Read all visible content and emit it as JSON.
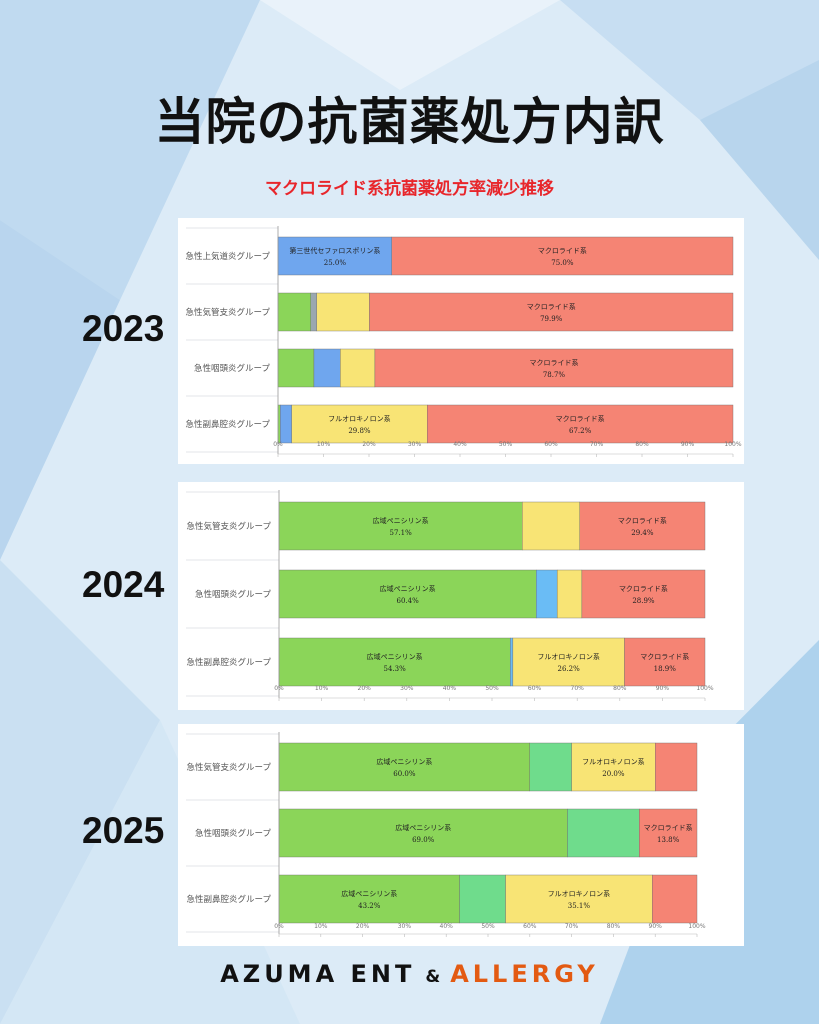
{
  "header": {
    "title": "当院の抗菌薬処方内訳",
    "subtitle": "マクロライド系抗菌薬処方率減少推移"
  },
  "colors": {
    "kouiki": "#8bd559",
    "sedem": "#6abcf5",
    "third_ceph": "#6fa6ee",
    "fluoro": "#f8e475",
    "macro": "#f58474",
    "other_grey": "#9aa7b0",
    "green2": "#6fdc8c"
  },
  "footer": {
    "brand": "AZUMA ENT",
    "amp": "&",
    "accent": "ALLERGY"
  },
  "chart_data": [
    {
      "type": "bar",
      "orientation": "horizontal",
      "stacked": true,
      "year_label": "2023",
      "xlim": [
        0,
        100
      ],
      "xticks": [
        "0%",
        "10%",
        "20%",
        "30%",
        "40%",
        "50%",
        "60%",
        "70%",
        "80%",
        "90%",
        "100%"
      ],
      "categories": [
        "急性上気道炎グループ",
        "急性気管支炎グループ",
        "急性咽頭炎グループ",
        "急性副鼻腔炎グループ"
      ],
      "series": [
        {
          "color": "#8bd559",
          "values": [
            0,
            7.2,
            7.9,
            0.5
          ]
        },
        {
          "color": "#9aa7b0",
          "values": [
            0,
            1.3,
            0,
            0
          ]
        },
        {
          "name": "第三世代セファロスポリン系",
          "color": "#6fa6ee",
          "values": [
            25.0,
            0,
            5.8,
            2.5
          ]
        },
        {
          "name": "フルオロキノロン系",
          "color": "#f8e475",
          "values": [
            0,
            11.6,
            7.6,
            29.8
          ]
        },
        {
          "name": "マクロライド系",
          "color": "#f58474",
          "values": [
            75.0,
            79.9,
            78.7,
            67.2
          ]
        }
      ],
      "labels": [
        [
          {
            "series": 2,
            "text": "第三世代セファロスポリン系",
            "value": "25.0%"
          },
          {
            "series": 4,
            "text": "マクロライド系",
            "value": "75.0%"
          }
        ],
        [
          {
            "series": 4,
            "text": "マクロライド系",
            "value": "79.9%"
          }
        ],
        [
          {
            "series": 4,
            "text": "マクロライド系",
            "value": "78.7%"
          }
        ],
        [
          {
            "series": 3,
            "text": "フルオロキノロン系",
            "value": "29.8%"
          },
          {
            "series": 4,
            "text": "マクロライド系",
            "value": "67.2%"
          }
        ]
      ]
    },
    {
      "type": "bar",
      "orientation": "horizontal",
      "stacked": true,
      "year_label": "2024",
      "xlim": [
        0,
        100
      ],
      "xticks": [
        "0%",
        "10%",
        "20%",
        "30%",
        "40%",
        "50%",
        "60%",
        "70%",
        "80%",
        "90%",
        "100%"
      ],
      "categories": [
        "急性気管支炎グループ",
        "急性咽頭炎グループ",
        "急性副鼻腔炎グループ"
      ],
      "series": [
        {
          "name": "広域ペニシリン系",
          "color": "#8bd559",
          "values": [
            57.1,
            60.4,
            54.3
          ]
        },
        {
          "color": "#6abcf5",
          "values": [
            0,
            4.9,
            0.6
          ]
        },
        {
          "name": "フルオロキノロン系",
          "color": "#f8e475",
          "values": [
            13.5,
            5.8,
            26.2
          ]
        },
        {
          "name": "マクロライド系",
          "color": "#f58474",
          "values": [
            29.4,
            28.9,
            18.9
          ]
        }
      ],
      "labels": [
        [
          {
            "series": 0,
            "text": "広域ペニシリン系",
            "value": "57.1%"
          },
          {
            "series": 3,
            "text": "マクロライド系",
            "value": "29.4%"
          }
        ],
        [
          {
            "series": 0,
            "text": "広域ペニシリン系",
            "value": "60.4%"
          },
          {
            "series": 3,
            "text": "マクロライド系",
            "value": "28.9%"
          }
        ],
        [
          {
            "series": 0,
            "text": "広域ペニシリン系",
            "value": "54.3%"
          },
          {
            "series": 2,
            "text": "フルオロキノロン系",
            "value": "26.2%"
          },
          {
            "series": 3,
            "text": "マクロライド系",
            "value": "18.9%"
          }
        ]
      ]
    },
    {
      "type": "bar",
      "orientation": "horizontal",
      "stacked": true,
      "year_label": "2025",
      "xlim": [
        0,
        100
      ],
      "xticks": [
        "0%",
        "10%",
        "20%",
        "30%",
        "40%",
        "50%",
        "60%",
        "70%",
        "80%",
        "90%",
        "100%"
      ],
      "categories": [
        "急性気管支炎グループ",
        "急性咽頭炎グループ",
        "急性副鼻腔炎グループ"
      ],
      "series": [
        {
          "name": "広域ペニシリン系",
          "color": "#8bd559",
          "values": [
            60.0,
            69.0,
            43.2
          ]
        },
        {
          "color": "#6fdc8c",
          "values": [
            10.0,
            17.2,
            11.0
          ]
        },
        {
          "name": "フルオロキノロン系",
          "color": "#f8e475",
          "values": [
            20.0,
            0,
            35.1
          ]
        },
        {
          "name": "マクロライド系",
          "color": "#f58474",
          "values": [
            10.0,
            13.8,
            10.7
          ]
        }
      ],
      "labels": [
        [
          {
            "series": 0,
            "text": "広域ペニシリン系",
            "value": "60.0%"
          },
          {
            "series": 2,
            "text": "フルオロキノロン系",
            "value": "20.0%"
          }
        ],
        [
          {
            "series": 0,
            "text": "広域ペニシリン系",
            "value": "69.0%"
          },
          {
            "series": 3,
            "text": "マクロライド系",
            "value": "13.8%"
          }
        ],
        [
          {
            "series": 0,
            "text": "広域ペニシリン系",
            "value": "43.2%"
          },
          {
            "series": 2,
            "text": "フルオロキノロン系",
            "value": "35.1%"
          }
        ]
      ]
    }
  ]
}
